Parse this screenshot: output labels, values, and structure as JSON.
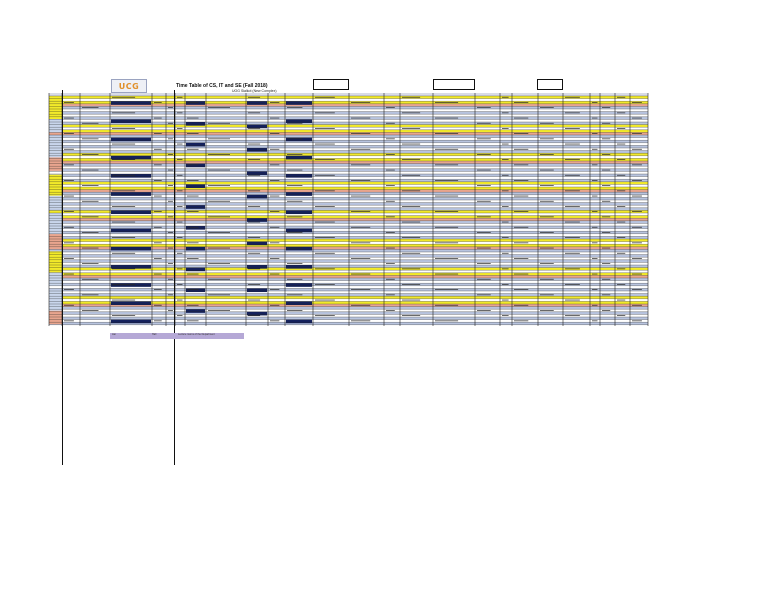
{
  "header": {
    "logo_text": "UCG",
    "title": "Time Table of CS, IT and SE (Fall 2018)",
    "subtitle": "UOG Sialkot (New Complex)"
  },
  "colors": {
    "yellow": "#f2ea2a",
    "salmon": "#e8a58e",
    "lavender": "#b8c4df",
    "white": "#ffffff",
    "navy": "#14215c",
    "cell_text": "#2a2a2a",
    "grid": "#222222",
    "day_column": "#c9d6ec"
  },
  "table": {
    "row_pattern": [
      "yellow",
      "white",
      "yellow",
      "salmon",
      "lavender",
      "white",
      "lavender",
      "white",
      "lavender",
      "white",
      "lavender"
    ],
    "day_blocks": 6,
    "navy_columns": [
      3,
      7,
      9,
      11
    ],
    "columns": 26
  },
  "footnote": {
    "text_a": "Jan",
    "text_b": "Hall",
    "text_c": "Lecture rooms of the Department"
  }
}
